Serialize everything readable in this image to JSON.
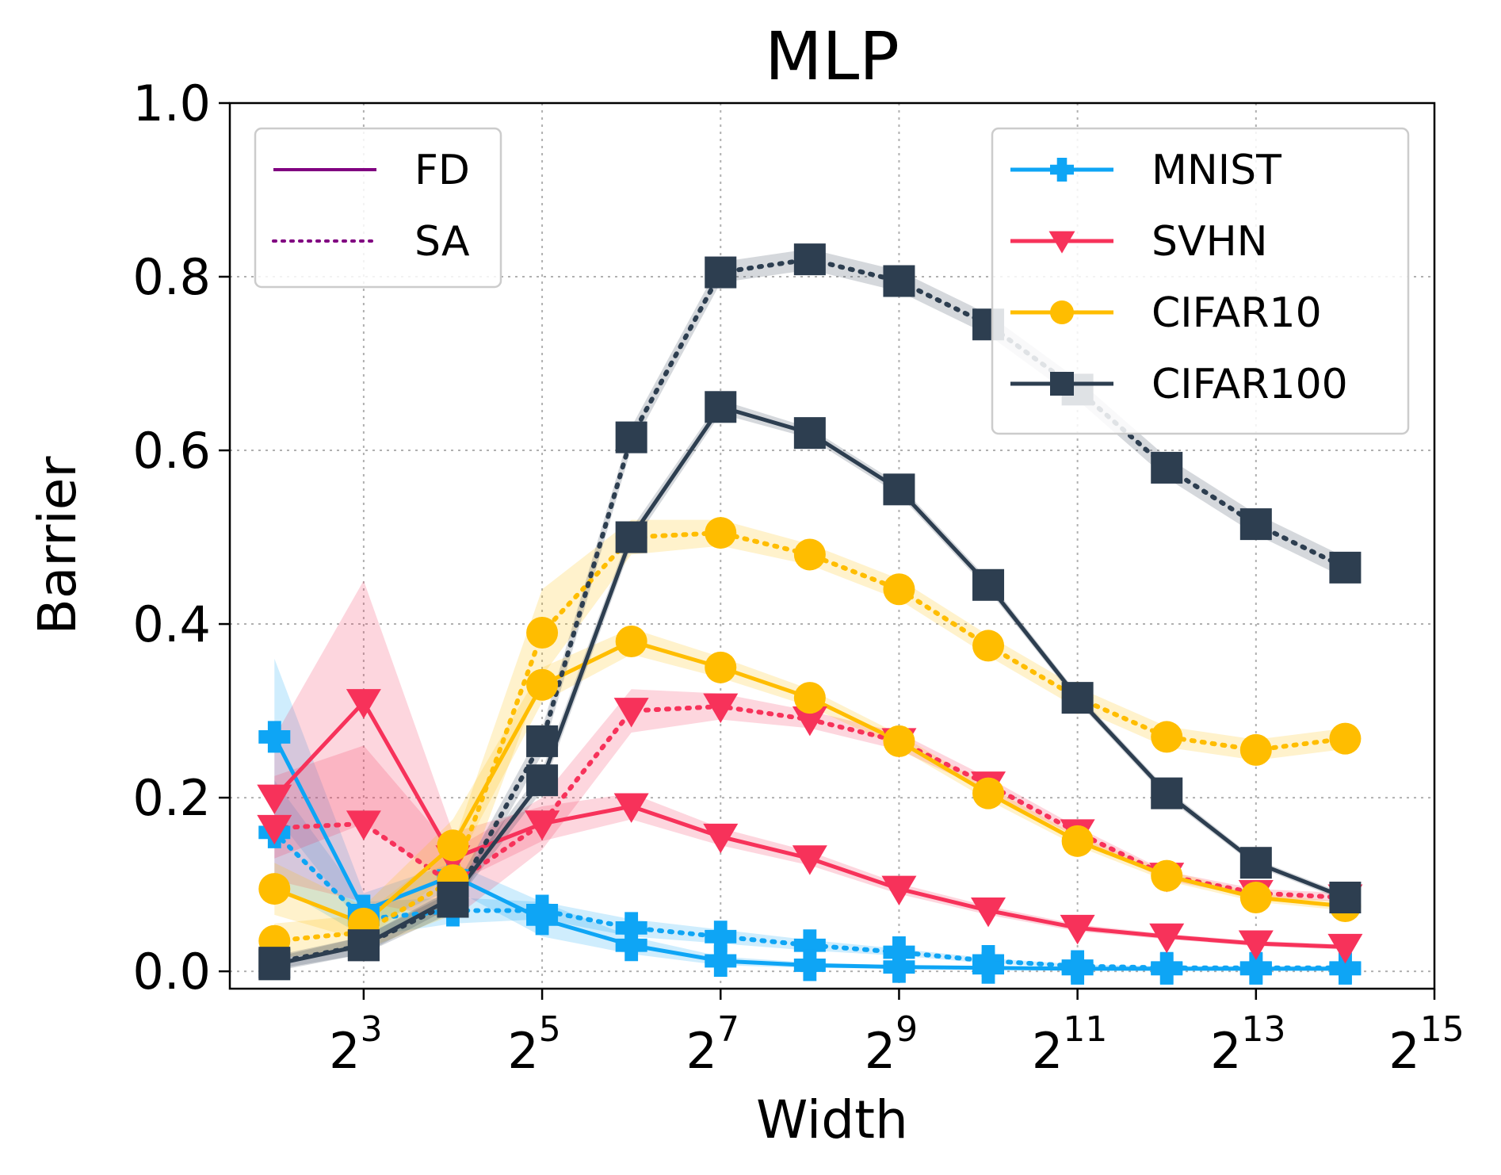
{
  "chart_data": {
    "type": "line",
    "title": "MLP",
    "xlabel": "Width",
    "ylabel": "Barrier",
    "x_scale": "log2",
    "xlim_exp": [
      1.5,
      15
    ],
    "ylim": [
      -0.02,
      1.0
    ],
    "x_tick_exponents": [
      "3",
      "5",
      "7",
      "9",
      "11",
      "13",
      "15"
    ],
    "x_tick_base": "2",
    "y_ticks": [
      "0.0",
      "0.2",
      "0.4",
      "0.6",
      "0.8",
      "1.0"
    ],
    "grid": true,
    "x": [
      4,
      8,
      16,
      32,
      64,
      128,
      256,
      512,
      1024,
      2048,
      4096,
      8192,
      16384
    ],
    "method_legend": {
      "placement": "top-left",
      "entries": [
        {
          "label": "FD",
          "style": "solid",
          "color": "#800080"
        },
        {
          "label": "SA",
          "style": "dotted",
          "color": "#800080"
        }
      ]
    },
    "dataset_legend_placement": "top-right",
    "series": [
      {
        "name": "MNIST",
        "color": "#0ea5f5",
        "marker": "plus",
        "FD": [
          0.27,
          0.07,
          0.11,
          0.06,
          0.03,
          0.012,
          0.007,
          0.005,
          0.004,
          0.003,
          0.003,
          0.003,
          0.003
        ],
        "SA": [
          0.16,
          0.06,
          0.07,
          0.07,
          0.05,
          0.04,
          0.03,
          0.022,
          0.012,
          0.006,
          0.004,
          0.004,
          0.004
        ],
        "FD_band": [
          0.09,
          0.02,
          0.015,
          0.02,
          0.01,
          0.005,
          0.003,
          0.002,
          0.002,
          0.001,
          0.001,
          0.001,
          0.001
        ],
        "SA_band": [
          0.06,
          0.02,
          0.015,
          0.01,
          0.01,
          0.008,
          0.006,
          0.004,
          0.003,
          0.002,
          0.002,
          0.002,
          0.002
        ]
      },
      {
        "name": "SVHN",
        "color": "#f7325a",
        "marker": "triangle-down",
        "FD": [
          0.2,
          0.31,
          0.13,
          0.17,
          0.19,
          0.155,
          0.13,
          0.095,
          0.07,
          0.05,
          0.04,
          0.032,
          0.028
        ],
        "SA": [
          0.165,
          0.17,
          0.1,
          0.17,
          0.3,
          0.305,
          0.29,
          0.265,
          0.215,
          0.16,
          0.11,
          0.09,
          0.085
        ],
        "FD_band": [
          0.07,
          0.14,
          0.03,
          0.02,
          0.015,
          0.01,
          0.008,
          0.006,
          0.005,
          0.004,
          0.003,
          0.003,
          0.003
        ],
        "SA_band": [
          0.06,
          0.09,
          0.04,
          0.03,
          0.025,
          0.015,
          0.01,
          0.01,
          0.008,
          0.006,
          0.005,
          0.005,
          0.005
        ]
      },
      {
        "name": "CIFAR10",
        "color": "#ffbd00",
        "marker": "circle",
        "FD": [
          0.095,
          0.055,
          0.145,
          0.33,
          0.38,
          0.35,
          0.315,
          0.265,
          0.205,
          0.15,
          0.11,
          0.085,
          0.075
        ],
        "SA": [
          0.035,
          0.045,
          0.105,
          0.39,
          0.5,
          0.505,
          0.48,
          0.44,
          0.375,
          0.315,
          0.27,
          0.255,
          0.268
        ],
        "FD_band": [
          0.03,
          0.02,
          0.03,
          0.02,
          0.015,
          0.012,
          0.01,
          0.008,
          0.008,
          0.006,
          0.006,
          0.005,
          0.005
        ],
        "SA_band": [
          0.02,
          0.02,
          0.04,
          0.05,
          0.02,
          0.015,
          0.012,
          0.012,
          0.012,
          0.012,
          0.012,
          0.012,
          0.012
        ]
      },
      {
        "name": "CIFAR100",
        "color": "#2d3e50",
        "marker": "square",
        "FD": [
          0.008,
          0.03,
          0.085,
          0.22,
          0.5,
          0.65,
          0.62,
          0.555,
          0.445,
          0.315,
          0.205,
          0.125,
          0.085
        ],
        "SA": [
          0.01,
          0.03,
          0.08,
          0.265,
          0.615,
          0.805,
          0.82,
          0.795,
          0.745,
          0.67,
          0.58,
          0.515,
          0.465
        ],
        "FD_band": [
          0.008,
          0.01,
          0.01,
          0.012,
          0.01,
          0.008,
          0.006,
          0.006,
          0.006,
          0.005,
          0.005,
          0.004,
          0.004
        ],
        "SA_band": [
          0.008,
          0.01,
          0.012,
          0.015,
          0.012,
          0.012,
          0.012,
          0.012,
          0.012,
          0.012,
          0.012,
          0.012,
          0.012
        ]
      }
    ]
  }
}
